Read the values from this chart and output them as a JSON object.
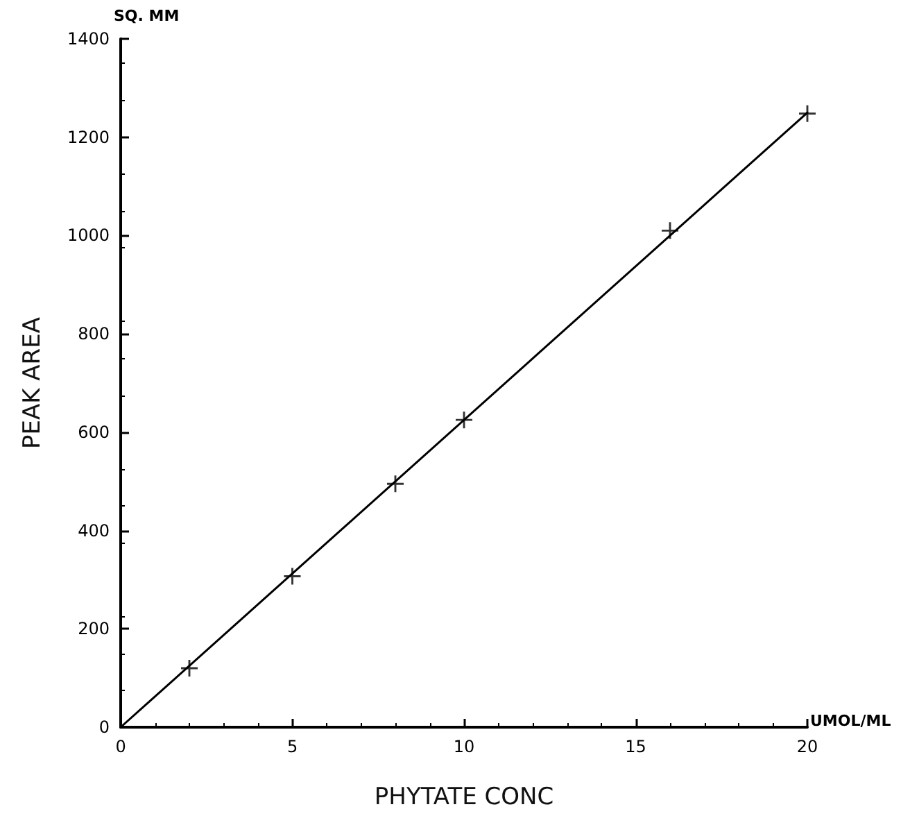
{
  "chart_data": {
    "type": "scatter",
    "xlabel": "PHYTATE CONC",
    "ylabel": "PEAK AREA",
    "annotations": [
      "SQ. MM",
      "UMOL/ML"
    ],
    "xlim": [
      0,
      20
    ],
    "xticks": [
      0,
      5,
      10,
      15,
      20
    ],
    "ylim": [
      0,
      1400
    ],
    "yticks": [
      0,
      200,
      400,
      600,
      800,
      1000,
      1200,
      1400
    ],
    "grid": false,
    "series": [
      {
        "marker": "cross",
        "color": "#000000",
        "x": [
          2,
          5,
          8,
          10,
          16,
          20
        ],
        "values": [
          120,
          307,
          495,
          625,
          1010,
          1248
        ]
      },
      {
        "type": "line",
        "marker": "none",
        "line_style": "solid",
        "color": "#000000",
        "x": [
          0,
          20
        ],
        "values": [
          0,
          1250
        ]
      }
    ]
  }
}
